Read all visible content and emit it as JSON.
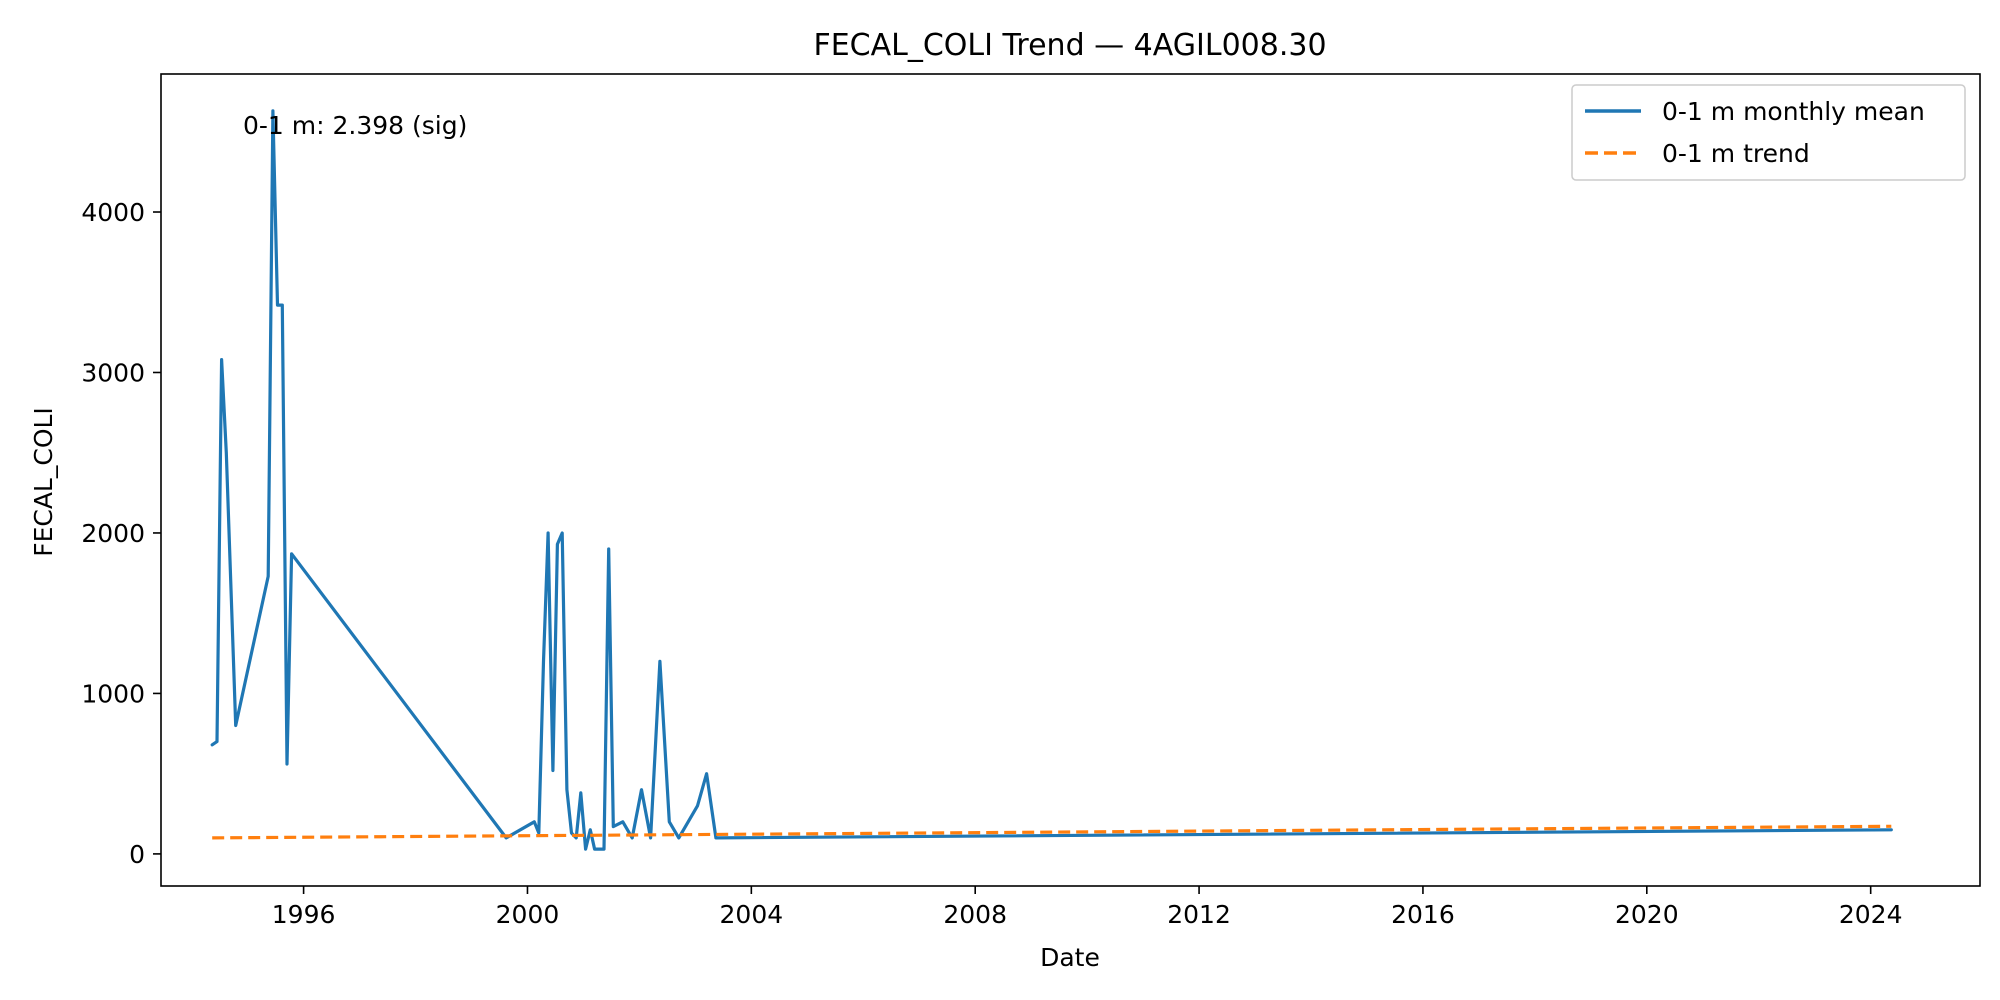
{
  "chart_data": {
    "type": "line",
    "title": "FECAL_COLI Trend — 4AGIL008.30",
    "xlabel": "Date",
    "ylabel": "FECAL_COLI",
    "x_ticks": [
      "1996",
      "2000",
      "2004",
      "2008",
      "2012",
      "2016",
      "2020",
      "2024"
    ],
    "y_ticks": [
      0,
      1000,
      2000,
      3000,
      4000
    ],
    "xlim": [
      "1993-06-15",
      "2025-12-15"
    ],
    "ylim": [
      -200,
      4860
    ],
    "grid": false,
    "legend_position": "top-right",
    "annotation": "0-1 m: 2.398 (sig)",
    "series": [
      {
        "name": "0-1 m monthly mean",
        "color": "#1f77b4",
        "style": "solid",
        "points": [
          [
            "1994-05-15",
            680
          ],
          [
            "1994-06-15",
            700
          ],
          [
            "1994-07-15",
            3080
          ],
          [
            "1994-08-15",
            2500
          ],
          [
            "1994-10-15",
            800
          ],
          [
            "1995-05-15",
            1730
          ],
          [
            "1995-06-15",
            4630
          ],
          [
            "1995-07-15",
            3420
          ],
          [
            "1995-08-15",
            3420
          ],
          [
            "1995-09-15",
            560
          ],
          [
            "1995-10-15",
            1870
          ],
          [
            "1999-08-15",
            100
          ],
          [
            "2000-02-15",
            200
          ],
          [
            "2000-03-15",
            130
          ],
          [
            "2000-04-15",
            1200
          ],
          [
            "2000-05-15",
            2000
          ],
          [
            "2000-06-15",
            520
          ],
          [
            "2000-07-15",
            1930
          ],
          [
            "2000-08-15",
            2000
          ],
          [
            "2000-09-15",
            400
          ],
          [
            "2000-10-15",
            130
          ],
          [
            "2000-11-15",
            100
          ],
          [
            "2000-12-15",
            380
          ],
          [
            "2001-01-15",
            30
          ],
          [
            "2001-02-15",
            150
          ],
          [
            "2001-03-15",
            30
          ],
          [
            "2001-05-15",
            30
          ],
          [
            "2001-06-15",
            1900
          ],
          [
            "2001-07-15",
            170
          ],
          [
            "2001-09-15",
            200
          ],
          [
            "2001-11-15",
            100
          ],
          [
            "2002-01-15",
            400
          ],
          [
            "2002-03-15",
            100
          ],
          [
            "2002-05-15",
            1200
          ],
          [
            "2002-07-15",
            200
          ],
          [
            "2002-09-15",
            100
          ],
          [
            "2003-01-15",
            300
          ],
          [
            "2003-03-15",
            500
          ],
          [
            "2003-05-15",
            100
          ],
          [
            "2024-05-15",
            150
          ]
        ]
      },
      {
        "name": "0-1 m trend",
        "color": "#ff7f0e",
        "style": "dashed",
        "points": [
          [
            "1994-05-15",
            100
          ],
          [
            "2024-05-15",
            172
          ]
        ]
      }
    ]
  }
}
